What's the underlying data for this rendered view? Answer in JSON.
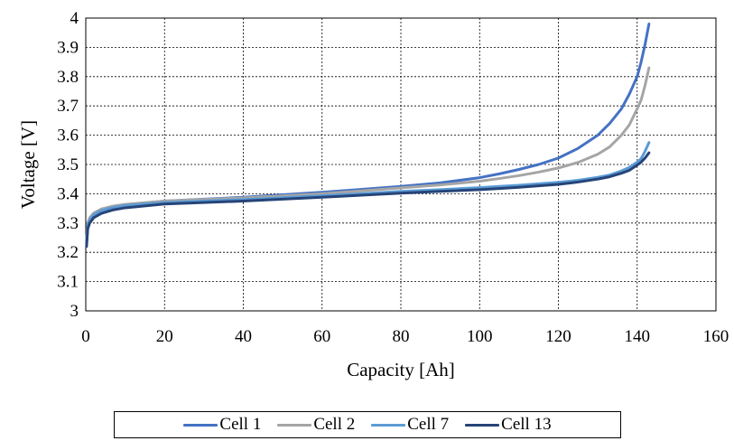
{
  "chart_data": {
    "type": "line",
    "title": "",
    "xlabel": "Capacity [Ah]",
    "ylabel": "Voltage [V]",
    "xlim": [
      0,
      160
    ],
    "ylim": [
      3,
      4
    ],
    "xticks": [
      "0",
      "20",
      "40",
      "60",
      "80",
      "100",
      "120",
      "140",
      "160"
    ],
    "yticks": [
      "3",
      "3.1",
      "3.2",
      "3.3",
      "3.4",
      "3.5",
      "3.6",
      "3.7",
      "3.8",
      "3.9",
      "4"
    ],
    "grid": true,
    "legend_position": "bottom",
    "series": [
      {
        "name": "Cell 1",
        "color": "#4472C4",
        "x": [
          0.2,
          0.5,
          1,
          2,
          4,
          7,
          10,
          20,
          40,
          60,
          80,
          90,
          100,
          105,
          110,
          115,
          120,
          125,
          130,
          133,
          136,
          138,
          140,
          141,
          142,
          143
        ],
        "y": [
          3.23,
          3.29,
          3.31,
          3.33,
          3.345,
          3.355,
          3.362,
          3.375,
          3.388,
          3.405,
          3.425,
          3.437,
          3.455,
          3.468,
          3.483,
          3.5,
          3.522,
          3.555,
          3.6,
          3.64,
          3.69,
          3.74,
          3.8,
          3.85,
          3.91,
          3.98
        ]
      },
      {
        "name": "Cell 2",
        "color": "#A5A5A5",
        "x": [
          0.2,
          0.5,
          1,
          2,
          4,
          7,
          10,
          20,
          40,
          60,
          80,
          90,
          100,
          105,
          110,
          115,
          120,
          125,
          130,
          133,
          136,
          138,
          140,
          141,
          142,
          143
        ],
        "y": [
          3.24,
          3.3,
          3.318,
          3.334,
          3.348,
          3.358,
          3.364,
          3.375,
          3.386,
          3.4,
          3.42,
          3.43,
          3.443,
          3.452,
          3.462,
          3.474,
          3.488,
          3.507,
          3.535,
          3.56,
          3.6,
          3.635,
          3.69,
          3.72,
          3.77,
          3.83
        ]
      },
      {
        "name": "Cell 7",
        "color": "#5B9BD5",
        "x": [
          0.2,
          0.5,
          1,
          2,
          4,
          7,
          10,
          20,
          40,
          60,
          80,
          90,
          100,
          105,
          110,
          115,
          120,
          125,
          130,
          133,
          136,
          138,
          140,
          141,
          142,
          143
        ],
        "y": [
          3.24,
          3.29,
          3.31,
          3.328,
          3.343,
          3.353,
          3.36,
          3.37,
          3.38,
          3.393,
          3.408,
          3.414,
          3.421,
          3.425,
          3.429,
          3.434,
          3.439,
          3.446,
          3.456,
          3.464,
          3.478,
          3.49,
          3.508,
          3.52,
          3.545,
          3.575
        ]
      },
      {
        "name": "Cell 13",
        "color": "#264478",
        "x": [
          0.2,
          0.5,
          1,
          2,
          4,
          7,
          10,
          20,
          40,
          60,
          80,
          90,
          100,
          105,
          110,
          115,
          120,
          125,
          130,
          133,
          136,
          138,
          140,
          141,
          142,
          143
        ],
        "y": [
          3.22,
          3.28,
          3.3,
          3.318,
          3.333,
          3.345,
          3.352,
          3.365,
          3.375,
          3.388,
          3.402,
          3.408,
          3.414,
          3.418,
          3.422,
          3.427,
          3.432,
          3.44,
          3.45,
          3.458,
          3.47,
          3.48,
          3.498,
          3.508,
          3.522,
          3.54
        ]
      }
    ]
  }
}
